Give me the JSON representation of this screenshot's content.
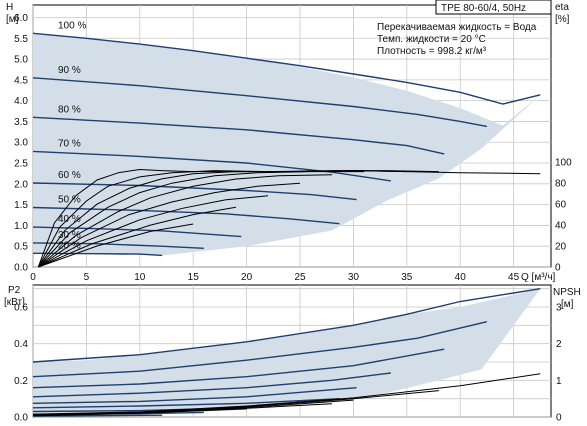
{
  "header": {
    "title": "TPE 80-60/4, 50Hz"
  },
  "info": {
    "lines": [
      "Перекачиваемая жидкость = Вода",
      "Темп. жидкости = 20 °C",
      "Плотность = 998.2 кг/м³"
    ]
  },
  "colors": {
    "envelope_fill": "#d3dee9",
    "curve": "#1f3f6e",
    "eta_curve": "#000000",
    "grid": "#c8c8c8",
    "axis": "#000000"
  },
  "chart_data": [
    {
      "type": "line",
      "name": "head",
      "axis_labels": {
        "y_left": [
          "H",
          "[м]"
        ],
        "y_right": [
          "eta",
          "[%]"
        ],
        "x": "Q [м³/ч]"
      },
      "x_ticks": [
        0,
        5,
        10,
        15,
        20,
        25,
        30,
        35,
        40,
        45
      ],
      "y_ticks": [
        0.0,
        0.5,
        1.0,
        1.5,
        2.0,
        2.5,
        3.0,
        3.5,
        4.0,
        4.5,
        5.0,
        5.5,
        6.0
      ],
      "y_right_ticks": [
        0,
        20,
        40,
        60,
        80,
        100
      ],
      "xlim": [
        0,
        48.5
      ],
      "ylim": [
        0,
        6.3
      ],
      "y_right_lim": [
        0,
        100
      ],
      "grid": true,
      "envelope": {
        "upper": [
          [
            0,
            5.62
          ],
          [
            5,
            5.5
          ],
          [
            10,
            5.36
          ],
          [
            15,
            5.2
          ],
          [
            20,
            5.02
          ],
          [
            25,
            4.82
          ],
          [
            30,
            4.56
          ],
          [
            35,
            4.24
          ],
          [
            40,
            3.82
          ],
          [
            44,
            3.4
          ],
          [
            47.5,
            4.14
          ]
        ],
        "lower": [
          [
            0,
            0.33
          ],
          [
            12.1,
            0.28
          ],
          [
            20,
            0.5
          ],
          [
            28,
            0.88
          ],
          [
            33,
            1.58
          ],
          [
            38,
            2.13
          ],
          [
            42,
            2.85
          ],
          [
            47.5,
            4.14
          ]
        ]
      },
      "series": [
        {
          "label": "100 %",
          "points": [
            [
              0,
              5.62
            ],
            [
              5,
              5.5
            ],
            [
              10,
              5.36
            ],
            [
              15,
              5.2
            ],
            [
              20,
              5.02
            ],
            [
              25,
              4.84
            ],
            [
              30,
              4.64
            ],
            [
              35,
              4.44
            ],
            [
              40,
              4.2
            ],
            [
              44,
              3.92
            ],
            [
              47.5,
              4.14
            ]
          ]
        },
        {
          "label": "90 %",
          "points": [
            [
              0,
              4.55
            ],
            [
              10,
              4.36
            ],
            [
              20,
              4.12
            ],
            [
              30,
              3.86
            ],
            [
              36,
              3.67
            ],
            [
              40,
              3.5
            ],
            [
              42.5,
              3.38
            ]
          ]
        },
        {
          "label": "80 %",
          "points": [
            [
              0,
              3.6
            ],
            [
              10,
              3.46
            ],
            [
              20,
              3.3
            ],
            [
              30,
              3.06
            ],
            [
              35,
              2.92
            ],
            [
              38.5,
              2.72
            ]
          ]
        },
        {
          "label": "70 %",
          "points": [
            [
              0,
              2.78
            ],
            [
              10,
              2.66
            ],
            [
              20,
              2.5
            ],
            [
              28,
              2.28
            ],
            [
              33.5,
              2.07
            ]
          ]
        },
        {
          "label": "60 %",
          "points": [
            [
              0,
              2.02
            ],
            [
              10,
              1.96
            ],
            [
              20,
              1.84
            ],
            [
              26,
              1.74
            ],
            [
              30.3,
              1.62
            ]
          ]
        },
        {
          "label": "50 %",
          "points": [
            [
              0,
              1.43
            ],
            [
              10,
              1.36
            ],
            [
              18,
              1.28
            ],
            [
              24,
              1.16
            ],
            [
              28.7,
              1.04
            ]
          ]
        },
        {
          "label": "40 %",
          "points": [
            [
              0,
              0.96
            ],
            [
              6,
              0.92
            ],
            [
              12,
              0.87
            ],
            [
              19.5,
              0.73
            ]
          ]
        },
        {
          "label": "30 %",
          "points": [
            [
              0,
              0.58
            ],
            [
              6,
              0.56
            ],
            [
              12,
              0.5
            ],
            [
              16,
              0.45
            ]
          ]
        },
        {
          "label": "20 %",
          "points": [
            [
              0,
              0.33
            ],
            [
              6,
              0.32
            ],
            [
              10,
              0.31
            ],
            [
              12.1,
              0.28
            ]
          ]
        }
      ],
      "eta_curves": [
        {
          "points": [
            [
              0.5,
              0
            ],
            [
              2,
              42
            ],
            [
              4,
              68
            ],
            [
              6,
              83
            ],
            [
              8,
              90
            ],
            [
              10,
              93
            ],
            [
              12,
              92
            ],
            [
              15,
              91
            ],
            [
              20,
              91
            ],
            [
              25,
              91
            ],
            [
              30,
              92
            ],
            [
              35,
              91
            ],
            [
              40,
              90
            ],
            [
              47.5,
              89
            ]
          ]
        },
        {
          "points": [
            [
              0.5,
              0
            ],
            [
              2.5,
              38
            ],
            [
              5,
              63
            ],
            [
              7,
              77
            ],
            [
              10,
              86
            ],
            [
              13,
              90
            ],
            [
              17,
              92
            ],
            [
              22,
              91
            ],
            [
              28,
              92
            ],
            [
              33,
              92
            ],
            [
              38,
              91
            ]
          ]
        },
        {
          "points": [
            [
              0.5,
              0
            ],
            [
              3,
              35
            ],
            [
              6,
              60
            ],
            [
              9,
              75
            ],
            [
              12,
              84
            ],
            [
              15,
              89
            ],
            [
              19,
              91
            ],
            [
              24,
              91
            ],
            [
              30,
              92
            ],
            [
              35,
              91
            ]
          ]
        },
        {
          "points": [
            [
              0.5,
              0
            ],
            [
              3.5,
              33
            ],
            [
              7,
              57
            ],
            [
              10,
              71
            ],
            [
              13,
              80
            ],
            [
              17,
              87
            ],
            [
              21,
              90
            ],
            [
              26,
              91
            ],
            [
              31,
              91
            ]
          ]
        },
        {
          "points": [
            [
              0.5,
              0
            ],
            [
              4,
              30
            ],
            [
              8,
              53
            ],
            [
              11,
              66
            ],
            [
              15,
              77
            ],
            [
              19,
              84
            ],
            [
              23,
              87
            ],
            [
              28,
              88
            ]
          ]
        },
        {
          "points": [
            [
              0.5,
              0
            ],
            [
              4.5,
              28
            ],
            [
              9,
              50
            ],
            [
              13,
              62
            ],
            [
              17,
              71
            ],
            [
              21,
              77
            ],
            [
              25,
              80
            ]
          ]
        },
        {
          "points": [
            [
              0.5,
              0
            ],
            [
              5,
              25
            ],
            [
              10,
              45
            ],
            [
              14,
              56
            ],
            [
              18,
              64
            ],
            [
              22,
              68
            ]
          ]
        },
        {
          "points": [
            [
              0.5,
              0
            ],
            [
              5.5,
              22
            ],
            [
              11,
              40
            ],
            [
              15,
              50
            ],
            [
              19,
              57
            ]
          ]
        },
        {
          "points": [
            [
              0.5,
              0
            ],
            [
              6,
              20
            ],
            [
              11,
              34
            ],
            [
              15,
              41
            ]
          ]
        }
      ]
    },
    {
      "type": "line",
      "name": "power",
      "axis_labels": {
        "y_left": [
          "P2",
          "[кВт]"
        ],
        "y_right": [
          "NPSH",
          "[м]"
        ]
      },
      "y_ticks": [
        0.0,
        0.2,
        0.4,
        0.6
      ],
      "y_right_ticks": [
        0,
        1,
        2,
        3
      ],
      "xlim": [
        0,
        48.5
      ],
      "ylim": [
        0,
        0.72
      ],
      "y_right_lim": [
        0,
        3.6
      ],
      "grid": true,
      "envelope": {
        "upper": [
          [
            0,
            0.3
          ],
          [
            5,
            0.31
          ],
          [
            10,
            0.34
          ],
          [
            15,
            0.37
          ],
          [
            20,
            0.41
          ],
          [
            25,
            0.45
          ],
          [
            30,
            0.5
          ],
          [
            35,
            0.56
          ],
          [
            40,
            0.6
          ],
          [
            47.5,
            0.7
          ]
        ],
        "lower": [
          [
            0,
            0.02
          ],
          [
            12,
            0.02
          ],
          [
            20,
            0.04
          ],
          [
            28,
            0.08
          ],
          [
            33,
            0.13
          ],
          [
            38,
            0.2
          ],
          [
            42,
            0.26
          ],
          [
            47.5,
            0.7
          ]
        ]
      },
      "series": [
        {
          "label": "100 %",
          "points": [
            [
              0,
              0.3
            ],
            [
              10,
              0.34
            ],
            [
              20,
              0.41
            ],
            [
              30,
              0.5
            ],
            [
              35,
              0.56
            ],
            [
              40,
              0.63
            ],
            [
              47.5,
              0.7
            ]
          ]
        },
        {
          "label": "90 %",
          "points": [
            [
              0,
              0.22
            ],
            [
              10,
              0.25
            ],
            [
              20,
              0.31
            ],
            [
              30,
              0.38
            ],
            [
              36,
              0.43
            ],
            [
              42.5,
              0.52
            ]
          ]
        },
        {
          "label": "80 %",
          "points": [
            [
              0,
              0.16
            ],
            [
              10,
              0.18
            ],
            [
              20,
              0.22
            ],
            [
              30,
              0.28
            ],
            [
              38.5,
              0.37
            ]
          ]
        },
        {
          "label": "70 %",
          "points": [
            [
              0,
              0.11
            ],
            [
              10,
              0.13
            ],
            [
              20,
              0.16
            ],
            [
              28,
              0.2
            ],
            [
              33.5,
              0.24
            ]
          ]
        },
        {
          "label": "60 %",
          "points": [
            [
              0,
              0.075
            ],
            [
              10,
              0.085
            ],
            [
              20,
              0.11
            ],
            [
              30.3,
              0.16
            ]
          ]
        },
        {
          "label": "50 %",
          "points": [
            [
              0,
              0.05
            ],
            [
              10,
              0.06
            ],
            [
              20,
              0.075
            ],
            [
              28.7,
              0.1
            ]
          ]
        },
        {
          "label": "40 %",
          "points": [
            [
              0,
              0.03
            ],
            [
              10,
              0.035
            ],
            [
              19.5,
              0.05
            ]
          ]
        },
        {
          "label": "30 %",
          "points": [
            [
              0,
              0.015
            ],
            [
              10,
              0.018
            ],
            [
              16,
              0.025
            ]
          ]
        },
        {
          "label": "20 %",
          "points": [
            [
              0,
              0.005
            ],
            [
              12.1,
              0.01
            ]
          ]
        }
      ],
      "npsh_curves": [
        {
          "points": [
            [
              0,
              0.08
            ],
            [
              10,
              0.14
            ],
            [
              20,
              0.3
            ],
            [
              30,
              0.52
            ],
            [
              40,
              0.85
            ],
            [
              47.5,
              1.18
            ]
          ]
        },
        {
          "points": [
            [
              0,
              0.06
            ],
            [
              10,
              0.13
            ],
            [
              20,
              0.28
            ],
            [
              30,
              0.5
            ],
            [
              38,
              0.72
            ]
          ]
        },
        {
          "points": [
            [
              0,
              0.05
            ],
            [
              10,
              0.12
            ],
            [
              20,
              0.26
            ],
            [
              30,
              0.46
            ]
          ]
        },
        {
          "points": [
            [
              0,
              0.04
            ],
            [
              10,
              0.11
            ],
            [
              20,
              0.24
            ],
            [
              28,
              0.36
            ]
          ]
        },
        {
          "points": [
            [
              0,
              0.03
            ],
            [
              10,
              0.1
            ],
            [
              20,
              0.22
            ]
          ]
        }
      ]
    }
  ]
}
